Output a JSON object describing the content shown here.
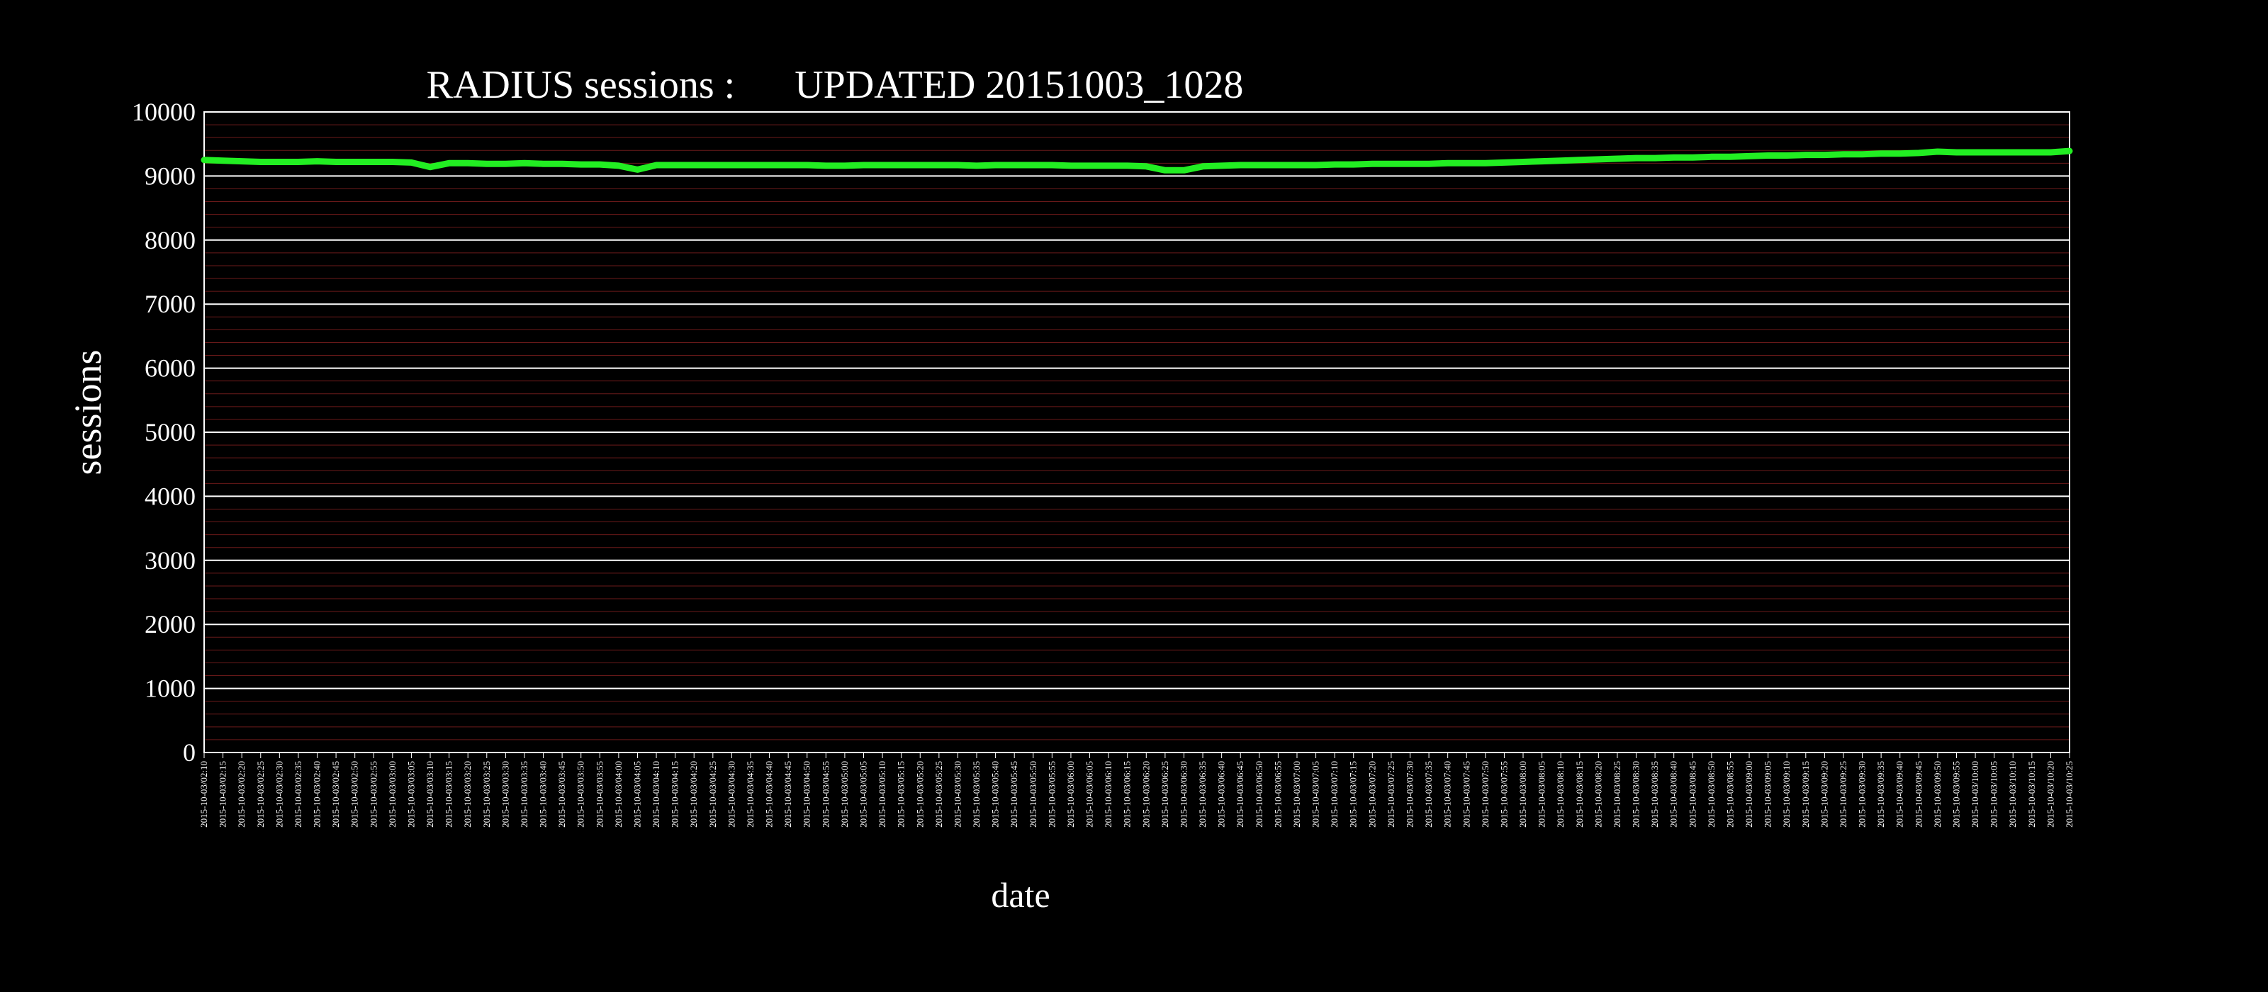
{
  "chart_data": {
    "type": "line",
    "title": "RADIUS sessions :      UPDATED 20151003_1028",
    "xlabel": "date",
    "ylabel": "sessions",
    "ylim": [
      0,
      10000
    ],
    "yticks": [
      "0",
      "1000",
      "2000",
      "3000",
      "4000",
      "5000",
      "6000",
      "7000",
      "8000",
      "9000",
      "10000"
    ],
    "grid": true,
    "legend": "none",
    "colors": {
      "background": "#000000",
      "line": "#22ee22",
      "major_grid": "#ffffff",
      "minor_grid": "#6b1a1a",
      "text": "#ffffff"
    },
    "x": [
      "2015-10-03/02:10",
      "2015-10-03/02:15",
      "2015-10-03/02:20",
      "2015-10-03/02:25",
      "2015-10-03/02:30",
      "2015-10-03/02:35",
      "2015-10-03/02:40",
      "2015-10-03/02:45",
      "2015-10-03/02:50",
      "2015-10-03/02:55",
      "2015-10-03/03:00",
      "2015-10-03/03:05",
      "2015-10-03/03:10",
      "2015-10-03/03:15",
      "2015-10-03/03:20",
      "2015-10-03/03:25",
      "2015-10-03/03:30",
      "2015-10-03/03:35",
      "2015-10-03/03:40",
      "2015-10-03/03:45",
      "2015-10-03/03:50",
      "2015-10-03/03:55",
      "2015-10-03/04:00",
      "2015-10-03/04:05",
      "2015-10-03/04:10",
      "2015-10-03/04:15",
      "2015-10-03/04:20",
      "2015-10-03/04:25",
      "2015-10-03/04:30",
      "2015-10-03/04:35",
      "2015-10-03/04:40",
      "2015-10-03/04:45",
      "2015-10-03/04:50",
      "2015-10-03/04:55",
      "2015-10-03/05:00",
      "2015-10-03/05:05",
      "2015-10-03/05:10",
      "2015-10-03/05:15",
      "2015-10-03/05:20",
      "2015-10-03/05:25",
      "2015-10-03/05:30",
      "2015-10-03/05:35",
      "2015-10-03/05:40",
      "2015-10-03/05:45",
      "2015-10-03/05:50",
      "2015-10-03/05:55",
      "2015-10-03/06:00",
      "2015-10-03/06:05",
      "2015-10-03/06:10",
      "2015-10-03/06:15",
      "2015-10-03/06:20",
      "2015-10-03/06:25",
      "2015-10-03/06:30",
      "2015-10-03/06:35",
      "2015-10-03/06:40",
      "2015-10-03/06:45",
      "2015-10-03/06:50",
      "2015-10-03/06:55",
      "2015-10-03/07:00",
      "2015-10-03/07:05",
      "2015-10-03/07:10",
      "2015-10-03/07:15",
      "2015-10-03/07:20",
      "2015-10-03/07:25",
      "2015-10-03/07:30",
      "2015-10-03/07:35",
      "2015-10-03/07:40",
      "2015-10-03/07:45",
      "2015-10-03/07:50",
      "2015-10-03/07:55",
      "2015-10-03/08:00",
      "2015-10-03/08:05",
      "2015-10-03/08:10",
      "2015-10-03/08:15",
      "2015-10-03/08:20",
      "2015-10-03/08:25",
      "2015-10-03/08:30",
      "2015-10-03/08:35",
      "2015-10-03/08:40",
      "2015-10-03/08:45",
      "2015-10-03/08:50",
      "2015-10-03/08:55",
      "2015-10-03/09:00",
      "2015-10-03/09:05",
      "2015-10-03/09:10",
      "2015-10-03/09:15",
      "2015-10-03/09:20",
      "2015-10-03/09:25",
      "2015-10-03/09:30",
      "2015-10-03/09:35",
      "2015-10-03/09:40",
      "2015-10-03/09:45",
      "2015-10-03/09:50",
      "2015-10-03/09:55",
      "2015-10-03/10:00",
      "2015-10-03/10:05",
      "2015-10-03/10:10",
      "2015-10-03/10:15",
      "2015-10-03/10:20",
      "2015-10-03/10:25"
    ],
    "series": [
      {
        "values": [
          9250,
          9240,
          9230,
          9220,
          9220,
          9220,
          9230,
          9220,
          9220,
          9220,
          9220,
          9210,
          9140,
          9200,
          9200,
          9190,
          9190,
          9200,
          9190,
          9190,
          9180,
          9180,
          9160,
          9100,
          9170,
          9170,
          9170,
          9170,
          9170,
          9170,
          9170,
          9170,
          9170,
          9160,
          9160,
          9170,
          9170,
          9170,
          9170,
          9170,
          9170,
          9160,
          9170,
          9170,
          9170,
          9170,
          9160,
          9160,
          9160,
          9160,
          9150,
          9090,
          9090,
          9150,
          9160,
          9170,
          9170,
          9170,
          9170,
          9170,
          9180,
          9180,
          9190,
          9190,
          9190,
          9190,
          9200,
          9200,
          9200,
          9210,
          9220,
          9230,
          9240,
          9250,
          9260,
          9270,
          9280,
          9280,
          9290,
          9290,
          9300,
          9300,
          9310,
          9320,
          9320,
          9330,
          9330,
          9340,
          9340,
          9350,
          9350,
          9360,
          9380,
          9370,
          9370,
          9370,
          9370,
          9370,
          9370,
          9390
        ]
      }
    ]
  }
}
